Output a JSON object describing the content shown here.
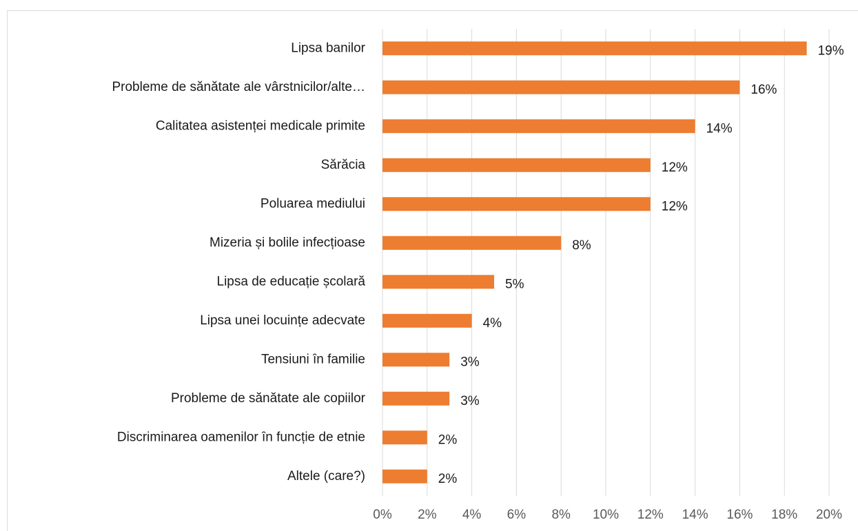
{
  "chart_data": {
    "type": "bar",
    "orientation": "horizontal",
    "categories": [
      "Lipsa banilor",
      "Probleme de sănătate ale vârstnicilor/alte…",
      "Calitatea asistenței medicale primite",
      "Sărăcia",
      "Poluarea mediului",
      "Mizeria și bolile infecțioase",
      "Lipsa de educație școlară",
      "Lipsa unei locuințe adecvate",
      "Tensiuni în familie",
      "Probleme de sănătate ale copiilor",
      "Discriminarea oamenilor în funcție de etnie",
      "Altele (care?)"
    ],
    "values": [
      19,
      16,
      14,
      12,
      12,
      8,
      5,
      4,
      3,
      3,
      2,
      2
    ],
    "value_labels": [
      "19%",
      "16%",
      "14%",
      "12%",
      "12%",
      "8%",
      "5%",
      "4%",
      "3%",
      "3%",
      "2%",
      "2%"
    ],
    "color": "#ed7d31",
    "xlim": [
      0,
      20
    ],
    "xticks": [
      {
        "value": 0,
        "label": "0%"
      },
      {
        "value": 2,
        "label": "2%"
      },
      {
        "value": 4,
        "label": "4%"
      },
      {
        "value": 6,
        "label": "6%"
      },
      {
        "value": 8,
        "label": "8%"
      },
      {
        "value": 10,
        "label": "10%"
      },
      {
        "value": 12,
        "label": "12%"
      },
      {
        "value": 14,
        "label": "14%"
      },
      {
        "value": 16,
        "label": "16%"
      },
      {
        "value": 18,
        "label": "18%"
      },
      {
        "value": 20,
        "label": "20%"
      }
    ],
    "grid": true
  }
}
